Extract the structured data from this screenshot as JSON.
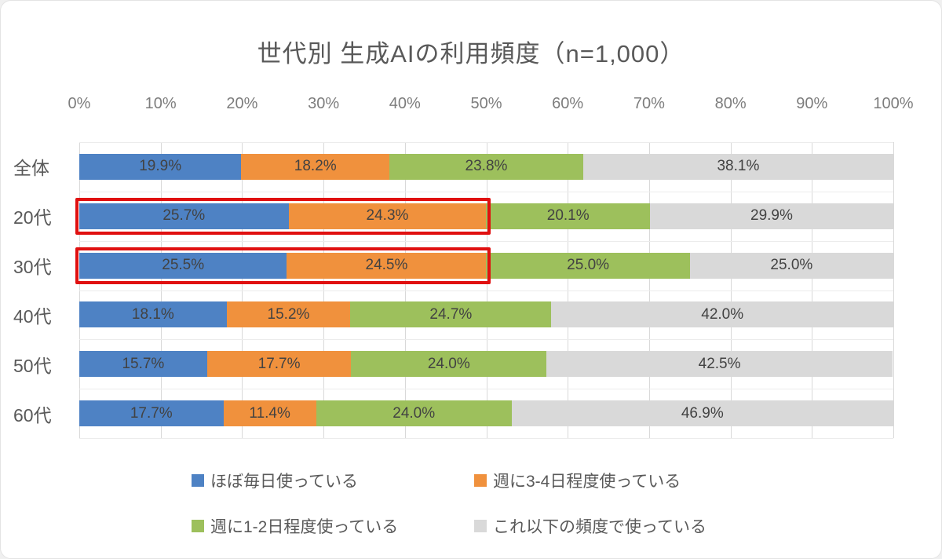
{
  "title": "世代別 生成AIの利用頻度（n=1,000）",
  "chart_data": {
    "type": "bar",
    "orientation": "horizontal",
    "stacked": true,
    "title": "世代別 生成AIの利用頻度（n=1,000）",
    "categories": [
      "全体",
      "20代",
      "30代",
      "40代",
      "50代",
      "60代"
    ],
    "series": [
      {
        "name": "ほぼ毎日使っている",
        "color": "#4e82c4",
        "values": [
          19.9,
          25.7,
          25.5,
          18.1,
          15.7,
          17.7
        ]
      },
      {
        "name": "週に3-4日程度使っている",
        "color": "#f0913d",
        "values": [
          18.2,
          24.3,
          24.5,
          15.2,
          17.7,
          11.4
        ]
      },
      {
        "name": "週に1-2日程度使っている",
        "color": "#9dc05c",
        "values": [
          23.8,
          20.1,
          25.0,
          24.7,
          24.0,
          24.0
        ]
      },
      {
        "name": "これ以下の頻度で使っている",
        "color": "#d9d9d9",
        "values": [
          38.1,
          29.9,
          25.0,
          42.0,
          42.5,
          46.9
        ]
      }
    ],
    "x_ticks": [
      "0%",
      "10%",
      "20%",
      "30%",
      "40%",
      "50%",
      "60%",
      "70%",
      "80%",
      "90%",
      "100%"
    ],
    "xlim": [
      0,
      100
    ],
    "grid": true,
    "legend_position": "bottom",
    "value_suffix": "%",
    "highlights": [
      {
        "category": "20代",
        "series_span": [
          0,
          1
        ],
        "color": "#e01010"
      },
      {
        "category": "30代",
        "series_span": [
          0,
          1
        ],
        "color": "#e01010"
      }
    ]
  }
}
